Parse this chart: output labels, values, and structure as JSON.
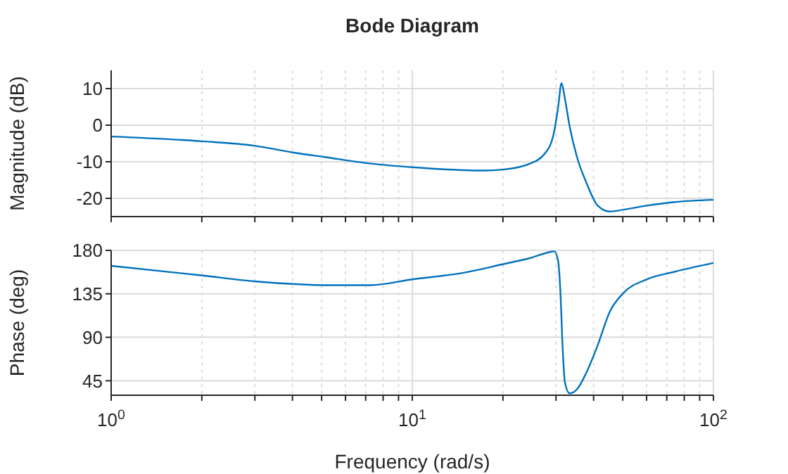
{
  "chart_data": [
    {
      "type": "line",
      "title": "Bode Diagram",
      "ylabel": "Magnitude (dB)",
      "log": "x",
      "grid": true,
      "tick_labels": "y",
      "marker": "none",
      "line_style": "solid",
      "xlim": [
        1,
        100
      ],
      "xticks": [
        {
          "value": 1,
          "label": null
        },
        {
          "value": 2,
          "label": null
        },
        {
          "value": 3,
          "label": null
        },
        {
          "value": 4,
          "label": null
        },
        {
          "value": 5,
          "label": null
        },
        {
          "value": 6,
          "label": null
        },
        {
          "value": 7,
          "label": null
        },
        {
          "value": 8,
          "label": null
        },
        {
          "value": 9,
          "label": null
        },
        {
          "value": 10,
          "label": null
        },
        {
          "value": 20,
          "label": null
        },
        {
          "value": 30,
          "label": null
        },
        {
          "value": 40,
          "label": null
        },
        {
          "value": 50,
          "label": null
        },
        {
          "value": 60,
          "label": null
        },
        {
          "value": 70,
          "label": null
        },
        {
          "value": 80,
          "label": null
        },
        {
          "value": 90,
          "label": null
        },
        {
          "value": 100,
          "label": null
        }
      ],
      "ylim": [
        -25,
        15
      ],
      "yticks": [
        -20,
        -10,
        0,
        10
      ],
      "x": [
        1,
        2.01,
        2.98,
        4.11,
        5.1,
        7.28,
        10,
        14.9,
        17.2,
        20.2,
        24.6,
        27.4,
        29.4,
        30.5,
        31.3,
        32.1,
        33.3,
        35.2,
        37.8,
        41.3,
        45.2,
        50.3,
        60.1,
        74.6,
        100
      ],
      "series": [
        {
          "color": "#0072bd",
          "values": [
            -3.1,
            -4.4,
            -5.6,
            -7.6,
            -8.7,
            -10.5,
            -11.5,
            -12.3,
            -12.4,
            -12.1,
            -10.5,
            -8,
            -2.8,
            4.9,
            11.5,
            7.4,
            -0.3,
            -8.6,
            -15.6,
            -22,
            -23.6,
            -23.1,
            -22,
            -21,
            -20.4
          ]
        }
      ]
    },
    {
      "type": "line",
      "xlabel": "Frequency (rad/s)",
      "ylabel": "Phase (deg)",
      "log": "x",
      "grid": true,
      "marker": "none",
      "line_style": "solid",
      "xlim": [
        1,
        100
      ],
      "xticks": [
        {
          "value": 1,
          "label": "10$^{0}$"
        },
        {
          "value": 2,
          "label": null
        },
        {
          "value": 3,
          "label": null
        },
        {
          "value": 4,
          "label": null
        },
        {
          "value": 5,
          "label": null
        },
        {
          "value": 6,
          "label": null
        },
        {
          "value": 7,
          "label": null
        },
        {
          "value": 8,
          "label": null
        },
        {
          "value": 9,
          "label": null
        },
        {
          "value": 10,
          "label": "10$^{1}$"
        },
        {
          "value": 20,
          "label": null
        },
        {
          "value": 30,
          "label": null
        },
        {
          "value": 40,
          "label": null
        },
        {
          "value": 50,
          "label": null
        },
        {
          "value": 60,
          "label": null
        },
        {
          "value": 70,
          "label": null
        },
        {
          "value": 80,
          "label": null
        },
        {
          "value": 90,
          "label": null
        },
        {
          "value": 100,
          "label": "10$^{2}$"
        }
      ],
      "ylim": [
        30,
        180
      ],
      "yticks": [
        45,
        90,
        135,
        180
      ],
      "x": [
        1,
        2.01,
        2.98,
        4.11,
        5.1,
        7.28,
        10,
        14.9,
        20.2,
        24.6,
        28.4,
        29.6,
        30.5,
        31.0,
        31.6,
        32.1,
        33.3,
        35.2,
        37.8,
        41.3,
        45.2,
        50.3,
        60.1,
        74.6,
        100
      ],
      "series": [
        {
          "color": "#0072bd",
          "values": [
            164,
            154,
            148,
            145,
            144,
            144,
            150,
            157,
            166,
            172,
            178,
            179,
            169,
            140,
            77,
            44,
            32,
            36,
            53,
            82,
            116,
            136,
            150,
            158,
            167
          ]
        }
      ]
    }
  ]
}
